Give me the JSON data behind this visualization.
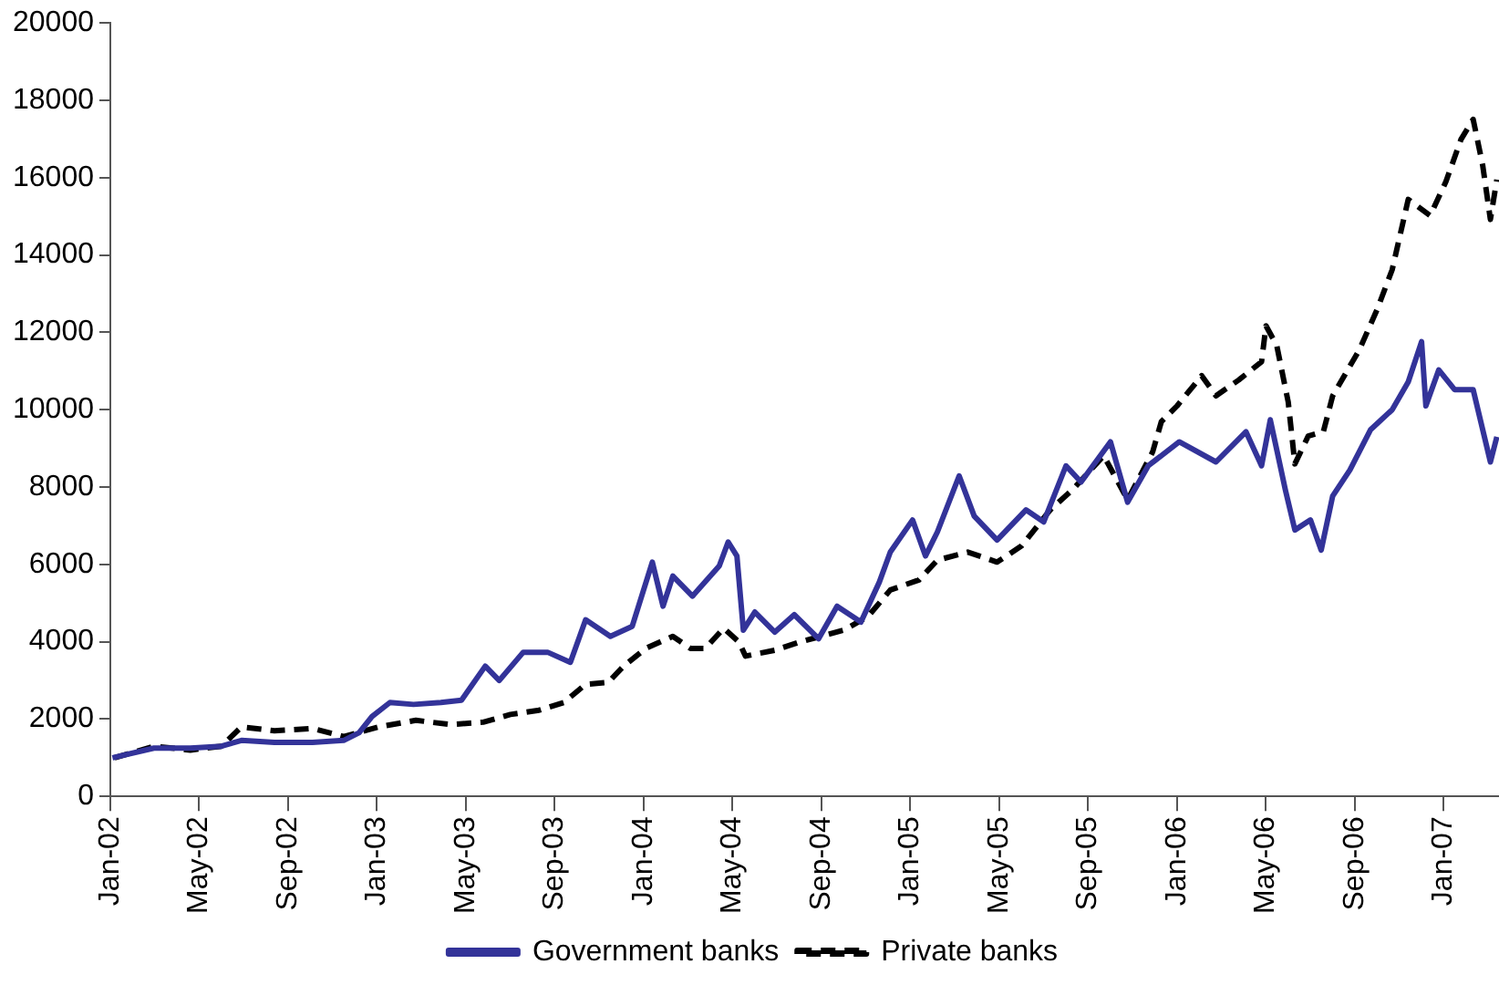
{
  "chart_data": {
    "type": "line",
    "xlim": [
      "2002-01-01",
      "2007-03-16"
    ],
    "xticks": [
      {
        "value": "2002-01",
        "label": "Jan-02"
      },
      {
        "value": "2002-05",
        "label": "May-02"
      },
      {
        "value": "2002-09",
        "label": "Sep-02"
      },
      {
        "value": "2003-01",
        "label": "Jan-03"
      },
      {
        "value": "2003-05",
        "label": "May-03"
      },
      {
        "value": "2003-09",
        "label": "Sep-03"
      },
      {
        "value": "2004-01",
        "label": "Jan-04"
      },
      {
        "value": "2004-05",
        "label": "May-04"
      },
      {
        "value": "2004-09",
        "label": "Sep-04"
      },
      {
        "value": "2005-01",
        "label": "Jan-05"
      },
      {
        "value": "2005-05",
        "label": "May-05"
      },
      {
        "value": "2005-09",
        "label": "Sep-05"
      },
      {
        "value": "2006-01",
        "label": "Jan-06"
      },
      {
        "value": "2006-05",
        "label": "May-06"
      },
      {
        "value": "2006-09",
        "label": "Sep-06"
      },
      {
        "value": "2007-01",
        "label": "Jan-07"
      }
    ],
    "ylim": [
      0,
      20000
    ],
    "yticks": [
      0,
      2000,
      4000,
      6000,
      8000,
      10000,
      12000,
      14000,
      16000,
      18000,
      20000
    ],
    "grid": false,
    "legend": "bottom",
    "marker": "none",
    "series": [
      {
        "name": "Government banks",
        "color": "#333399",
        "line_style": "solid",
        "x": [
          "2002-01-04",
          "2002-02-28",
          "2002-04-19",
          "2002-06-01",
          "2002-06-28",
          "2002-08-13",
          "2002-10-04",
          "2002-11-16",
          "2002-12-07",
          "2002-12-25",
          "2003-01-19",
          "2003-02-19",
          "2003-03-28",
          "2003-04-25",
          "2003-05-28",
          "2003-06-16",
          "2003-07-19",
          "2003-08-22",
          "2003-09-22",
          "2003-10-13",
          "2003-11-16",
          "2003-12-16",
          "2004-01-13",
          "2004-01-28",
          "2004-02-10",
          "2004-03-07",
          "2004-04-13",
          "2004-04-25",
          "2004-05-07",
          "2004-05-16",
          "2004-06-01",
          "2004-06-28",
          "2004-07-25",
          "2004-08-28",
          "2004-09-22",
          "2004-10-25",
          "2004-11-19",
          "2004-12-04",
          "2005-01-04",
          "2005-01-22",
          "2005-02-07",
          "2005-03-07",
          "2005-03-28",
          "2005-04-28",
          "2005-06-07",
          "2005-07-01",
          "2005-08-01",
          "2005-08-22",
          "2005-10-01",
          "2005-10-25",
          "2005-11-22",
          "2006-01-04",
          "2006-02-22",
          "2006-04-04",
          "2006-04-25",
          "2006-05-07",
          "2006-05-28",
          "2006-06-10",
          "2006-07-01",
          "2006-07-16",
          "2006-08-01",
          "2006-08-25",
          "2006-09-22",
          "2006-10-22",
          "2006-11-13",
          "2006-12-01",
          "2006-12-07",
          "2006-12-25",
          "2007-01-16",
          "2007-02-10",
          "2007-03-04",
          "2007-03-13"
        ],
        "values": [
          1000,
          1250,
          1250,
          1300,
          1450,
          1400,
          1400,
          1450,
          1650,
          2070,
          2430,
          2380,
          2430,
          2490,
          3370,
          3000,
          3730,
          3730,
          3470,
          4570,
          4140,
          4400,
          6060,
          4920,
          5700,
          5180,
          5960,
          6580,
          6220,
          4300,
          4770,
          4250,
          4700,
          4080,
          4920,
          4510,
          5540,
          6320,
          7150,
          6220,
          6840,
          8290,
          7250,
          6630,
          7410,
          7100,
          8550,
          8130,
          9170,
          7610,
          8550,
          9170,
          8650,
          9430,
          8550,
          9740,
          7930,
          6890,
          7150,
          6370,
          7770,
          8440,
          9480,
          10000,
          10720,
          11760,
          10100,
          11030,
          10520,
          10520,
          8650,
          9300
        ]
      },
      {
        "name": "Private banks",
        "color": "#000000",
        "line_style": "dashed",
        "x": [
          "2002-01-07",
          "2002-02-28",
          "2002-04-19",
          "2002-06-01",
          "2002-06-28",
          "2002-08-13",
          "2002-10-04",
          "2002-11-16",
          "2003-01-04",
          "2003-02-22",
          "2003-04-10",
          "2003-05-25",
          "2003-07-01",
          "2003-08-10",
          "2003-09-13",
          "2003-10-13",
          "2003-11-13",
          "2003-12-04",
          "2004-01-04",
          "2004-02-10",
          "2004-03-04",
          "2004-03-25",
          "2004-04-19",
          "2004-05-10",
          "2004-05-19",
          "2004-06-28",
          "2004-08-01",
          "2004-10-01",
          "2004-11-04",
          "2004-12-04",
          "2005-01-13",
          "2005-02-07",
          "2005-03-19",
          "2005-04-28",
          "2005-06-01",
          "2005-07-10",
          "2005-08-10",
          "2005-09-22",
          "2005-10-25",
          "2005-11-28",
          "2005-12-10",
          "2006-01-01",
          "2006-02-04",
          "2006-02-22",
          "2006-03-25",
          "2006-04-25",
          "2006-05-01",
          "2006-05-16",
          "2006-06-01",
          "2006-06-10",
          "2006-06-28",
          "2006-07-19",
          "2006-08-01",
          "2006-09-07",
          "2006-10-01",
          "2006-10-22",
          "2006-11-13",
          "2006-12-13",
          "2007-01-04",
          "2007-01-25",
          "2007-02-10",
          "2007-02-22",
          "2007-03-04",
          "2007-03-13"
        ],
        "values": [
          1000,
          1300,
          1200,
          1300,
          1800,
          1700,
          1760,
          1550,
          1800,
          1970,
          1860,
          1920,
          2120,
          2230,
          2430,
          2900,
          2950,
          3370,
          3830,
          4140,
          3830,
          3830,
          4350,
          3990,
          3630,
          3780,
          3990,
          4300,
          4660,
          5340,
          5600,
          6110,
          6320,
          6060,
          6480,
          7410,
          7930,
          8810,
          7670,
          8910,
          9690,
          10100,
          10880,
          10360,
          10770,
          11240,
          12170,
          11660,
          10200,
          8600,
          9320,
          9430,
          10360,
          11550,
          12590,
          13620,
          15440,
          15020,
          15900,
          16990,
          17510,
          16320,
          14920,
          15950
        ]
      }
    ]
  }
}
